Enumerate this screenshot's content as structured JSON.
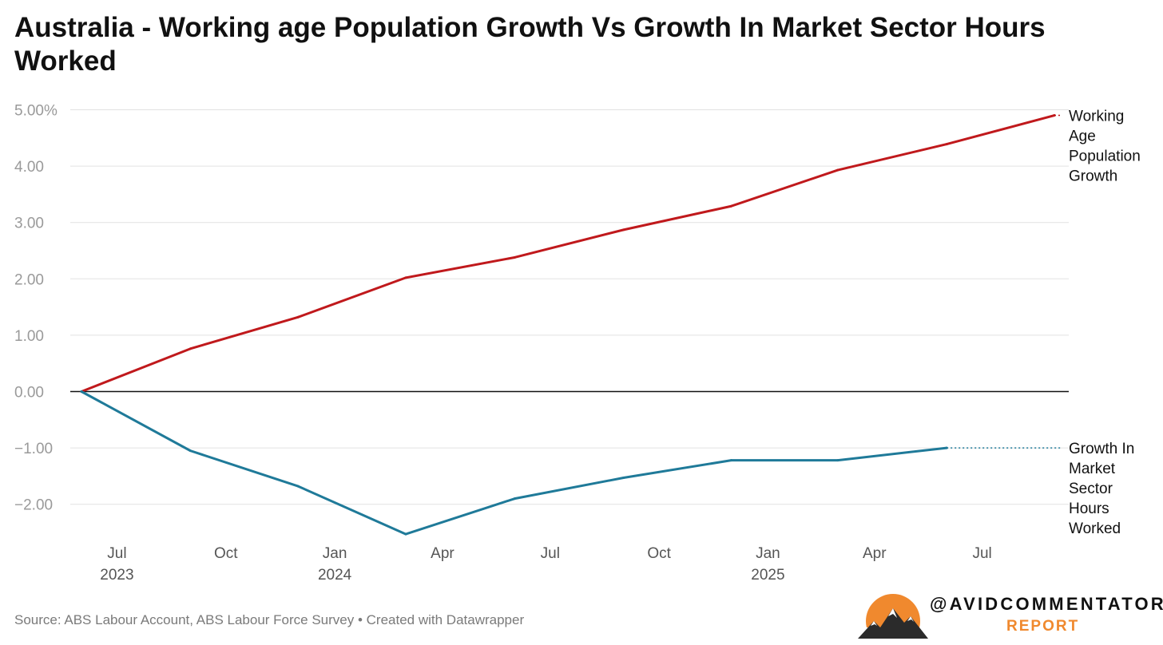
{
  "title": "Australia - Working age Population Growth Vs Growth In Market Sector Hours Worked",
  "source": "Source: ABS Labour Account, ABS Labour Force Survey • Created with Datawrapper",
  "brand": {
    "handle": "@AVIDCOMMENTATOR",
    "sub": "REPORT",
    "accent": "#f0892e"
  },
  "chart_data": {
    "type": "line",
    "ylim": [
      -2.5,
      5.0
    ],
    "y_ticks": [
      {
        "value": 5,
        "label": "5.00%"
      },
      {
        "value": 4,
        "label": "4.00"
      },
      {
        "value": 3,
        "label": "3.00"
      },
      {
        "value": 2,
        "label": "2.00"
      },
      {
        "value": 1,
        "label": "1.00"
      },
      {
        "value": 0,
        "label": "0.00"
      },
      {
        "value": -1,
        "label": "−1.00"
      },
      {
        "value": -2,
        "label": "−2.00"
      }
    ],
    "x_ticks": [
      {
        "date": "2023-07-01",
        "label": "Jul",
        "year": "2023"
      },
      {
        "date": "2023-10-01",
        "label": "Oct",
        "year": ""
      },
      {
        "date": "2024-01-01",
        "label": "Jan",
        "year": "2024"
      },
      {
        "date": "2024-04-01",
        "label": "Apr",
        "year": ""
      },
      {
        "date": "2024-07-01",
        "label": "Jul",
        "year": ""
      },
      {
        "date": "2024-10-01",
        "label": "Oct",
        "year": ""
      },
      {
        "date": "2025-01-01",
        "label": "Jan",
        "year": "2025"
      },
      {
        "date": "2025-04-01",
        "label": "Apr",
        "year": ""
      },
      {
        "date": "2025-07-01",
        "label": "Jul",
        "year": ""
      }
    ],
    "x_range": [
      "2023-06-01",
      "2025-08-31"
    ],
    "grid": true,
    "series": [
      {
        "name": "Working Age Population Growth",
        "label_lines": [
          "Working",
          "Age",
          "Population",
          "Growth"
        ],
        "color": "#c0191c",
        "points": [
          {
            "x": "2023-06-01",
            "y": 0.0
          },
          {
            "x": "2023-09-01",
            "y": 0.76
          },
          {
            "x": "2023-12-01",
            "y": 1.32
          },
          {
            "x": "2024-03-01",
            "y": 2.02
          },
          {
            "x": "2024-06-01",
            "y": 2.38
          },
          {
            "x": "2024-09-01",
            "y": 2.87
          },
          {
            "x": "2024-12-01",
            "y": 3.29
          },
          {
            "x": "2025-03-01",
            "y": 3.93
          },
          {
            "x": "2025-06-01",
            "y": 4.39
          },
          {
            "x": "2025-08-31",
            "y": 4.9
          }
        ]
      },
      {
        "name": "Growth In Market Sector Hours Worked",
        "label_lines": [
          "Growth In",
          "Market",
          "Sector",
          "Hours",
          "Worked"
        ],
        "color": "#1f7a99",
        "points": [
          {
            "x": "2023-06-01",
            "y": 0.0
          },
          {
            "x": "2023-09-01",
            "y": -1.05
          },
          {
            "x": "2023-12-01",
            "y": -1.68
          },
          {
            "x": "2024-03-01",
            "y": -2.53
          },
          {
            "x": "2024-06-01",
            "y": -1.9
          },
          {
            "x": "2024-09-01",
            "y": -1.53
          },
          {
            "x": "2024-12-01",
            "y": -1.22
          },
          {
            "x": "2025-03-01",
            "y": -1.22
          },
          {
            "x": "2025-06-01",
            "y": -1.0
          }
        ]
      }
    ]
  }
}
